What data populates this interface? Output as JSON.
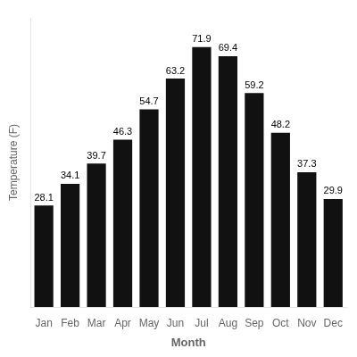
{
  "chart_data": {
    "type": "bar",
    "categories": [
      "Jan",
      "Feb",
      "Mar",
      "Apr",
      "May",
      "Jun",
      "Jul",
      "Aug",
      "Sep",
      "Oct",
      "Nov",
      "Dec"
    ],
    "values": [
      28.1,
      34.1,
      39.7,
      46.3,
      54.7,
      63.2,
      71.9,
      69.4,
      59.2,
      48.2,
      37.3,
      29.9
    ],
    "color": "#111111",
    "xlabel": "Month",
    "ylabel": "Temperature (F)",
    "ylim": [
      0,
      80
    ],
    "grid": false,
    "data_labels": true,
    "tick_labels": "x"
  }
}
